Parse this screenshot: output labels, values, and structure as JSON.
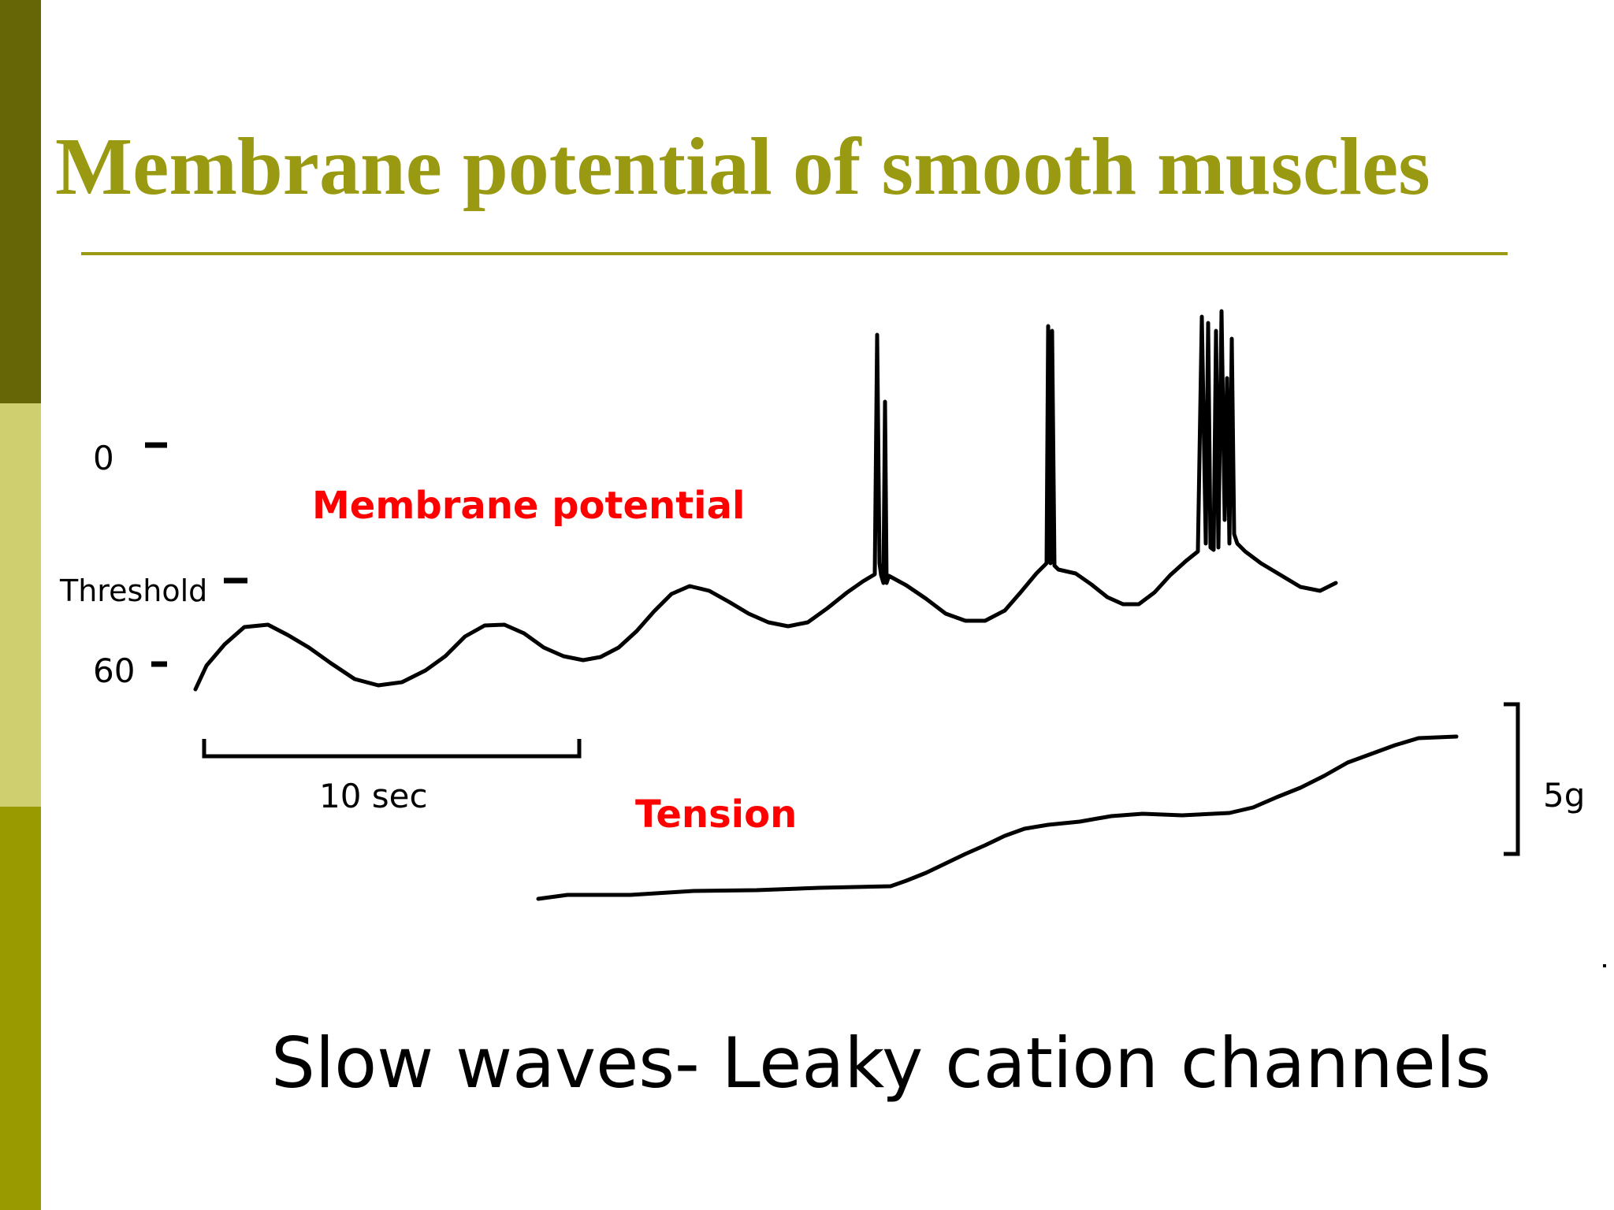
{
  "slide": {
    "title": "Membrane potential of smooth muscles",
    "caption": "Slow waves- Leaky cation channels"
  },
  "diagram": {
    "y_axis_labels": {
      "zero": "0",
      "threshold": "Threshold",
      "sixty": "60"
    },
    "time_scale_label": "10 sec",
    "force_scale_label": "5g",
    "traces": {
      "membrane": {
        "label": "Membrane potential",
        "color": "#ff0000"
      },
      "tension": {
        "label": "Tension",
        "color": "#ff0000"
      }
    }
  },
  "colors": {
    "title": "#999912",
    "sidebar": [
      "#666607",
      "#cfcf70",
      "#999900"
    ],
    "traces": "#000000"
  }
}
